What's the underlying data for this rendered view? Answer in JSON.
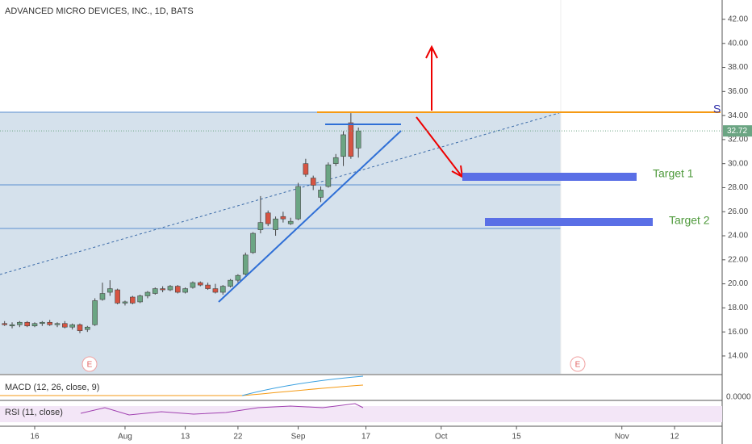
{
  "chart_data": {
    "type": "candlestick",
    "title": "ADVANCED MICRO DEVICES, INC., 1D, BATS",
    "x": [
      -4,
      -3,
      -2,
      -1,
      0,
      1,
      2,
      3,
      4,
      5,
      6,
      7,
      8,
      9,
      10,
      11,
      12,
      13,
      14,
      15,
      16,
      17,
      18,
      19,
      20,
      21,
      22,
      23,
      24,
      25,
      26,
      27,
      28,
      29,
      30,
      31,
      32,
      33,
      34,
      35,
      36,
      37,
      38,
      39,
      40,
      41,
      42,
      43
    ],
    "open": [
      16.7,
      16.5,
      16.6,
      16.8,
      16.5,
      16.7,
      16.8,
      16.6,
      16.7,
      16.4,
      16.6,
      16.2,
      16.6,
      18.7,
      19.3,
      19.5,
      18.4,
      18.9,
      18.5,
      19.0,
      19.2,
      19.6,
      19.5,
      19.8,
      19.3,
      19.7,
      20.1,
      19.9,
      19.6,
      19.3,
      19.8,
      20.3,
      20.8,
      22.6,
      24.5,
      25.9,
      24.5,
      25.6,
      25.0,
      25.4,
      30.0,
      28.8,
      27.2,
      28.1,
      30.0,
      30.6,
      33.4,
      31.3
    ],
    "high": [
      16.9,
      16.8,
      16.9,
      16.9,
      16.8,
      16.9,
      17.0,
      16.8,
      16.9,
      16.7,
      16.7,
      16.5,
      18.8,
      20.1,
      20.3,
      19.6,
      18.6,
      19.0,
      19.1,
      19.4,
      19.7,
      19.8,
      19.9,
      19.9,
      19.7,
      20.2,
      20.2,
      20.1,
      20.0,
      19.9,
      20.4,
      20.8,
      22.6,
      24.3,
      27.3,
      26.1,
      25.6,
      26.0,
      25.5,
      28.4,
      30.4,
      29.0,
      28.1,
      30.1,
      30.8,
      32.7,
      34.2,
      33.0
    ],
    "low": [
      16.5,
      16.3,
      16.4,
      16.4,
      16.4,
      16.5,
      16.5,
      16.4,
      16.3,
      16.2,
      15.9,
      16.0,
      16.5,
      18.6,
      19.0,
      18.3,
      18.2,
      18.3,
      18.4,
      18.8,
      19.1,
      19.3,
      19.4,
      19.2,
      19.2,
      19.6,
      19.8,
      19.5,
      19.2,
      19.1,
      19.7,
      20.1,
      20.7,
      22.5,
      24.2,
      24.8,
      24.0,
      25.1,
      24.9,
      25.3,
      28.9,
      27.8,
      26.8,
      28.0,
      29.8,
      29.8,
      30.4,
      30.5
    ],
    "close": [
      16.6,
      16.6,
      16.8,
      16.5,
      16.7,
      16.8,
      16.6,
      16.7,
      16.4,
      16.6,
      16.1,
      16.4,
      18.6,
      19.2,
      19.6,
      18.4,
      18.5,
      18.4,
      19.0,
      19.3,
      19.6,
      19.5,
      19.8,
      19.3,
      19.6,
      20.1,
      19.9,
      19.6,
      19.3,
      19.8,
      20.3,
      20.7,
      22.4,
      24.2,
      25.1,
      25.0,
      25.4,
      25.4,
      25.2,
      28.1,
      29.1,
      28.2,
      27.8,
      29.9,
      30.5,
      32.4,
      30.6,
      32.72
    ],
    "up_color": "#6ba583",
    "down_color": "#d75442",
    "xlim": [
      -4.61,
      91.32
    ],
    "ylim": [
      12.52,
      43.61
    ],
    "yticks": [
      {
        "value": 14,
        "label": "14.00"
      },
      {
        "value": 16,
        "label": "16.00"
      },
      {
        "value": 18,
        "label": "18.00"
      },
      {
        "value": 20,
        "label": "20.00"
      },
      {
        "value": 22,
        "label": "22.00"
      },
      {
        "value": 24,
        "label": "24.00"
      },
      {
        "value": 26,
        "label": "26.00"
      },
      {
        "value": 28,
        "label": "28.00"
      },
      {
        "value": 30,
        "label": "30.00"
      },
      {
        "value": 32,
        "label": "32.00"
      },
      {
        "value": 34,
        "label": "34.00"
      },
      {
        "value": 36,
        "label": "36.00"
      },
      {
        "value": 38,
        "label": "38.00"
      },
      {
        "value": 40,
        "label": "40.00"
      },
      {
        "value": 42,
        "label": "42.00"
      }
    ],
    "xticks": [
      {
        "value": 0,
        "label": "16"
      },
      {
        "value": 12,
        "label": "Aug"
      },
      {
        "value": 20,
        "label": "13"
      },
      {
        "value": 27,
        "label": "22"
      },
      {
        "value": 35,
        "label": "Sep"
      },
      {
        "value": 44,
        "label": "17"
      },
      {
        "value": 54,
        "label": "Oct"
      },
      {
        "value": 64,
        "label": "15"
      },
      {
        "value": 78,
        "label": "Nov"
      },
      {
        "value": 85,
        "label": "12"
      }
    ],
    "last_price": {
      "value": 32.72,
      "label": "32.72"
    },
    "annotations": {
      "target1": "Target 1",
      "target2": "Target 2",
      "support": "S",
      "earnings": [
        "E",
        "E"
      ]
    },
    "macd": {
      "title": "MACD (12, 26, close, 9)",
      "zero": "0.0000"
    },
    "rsi": {
      "title": "RSI (11, close)"
    }
  }
}
